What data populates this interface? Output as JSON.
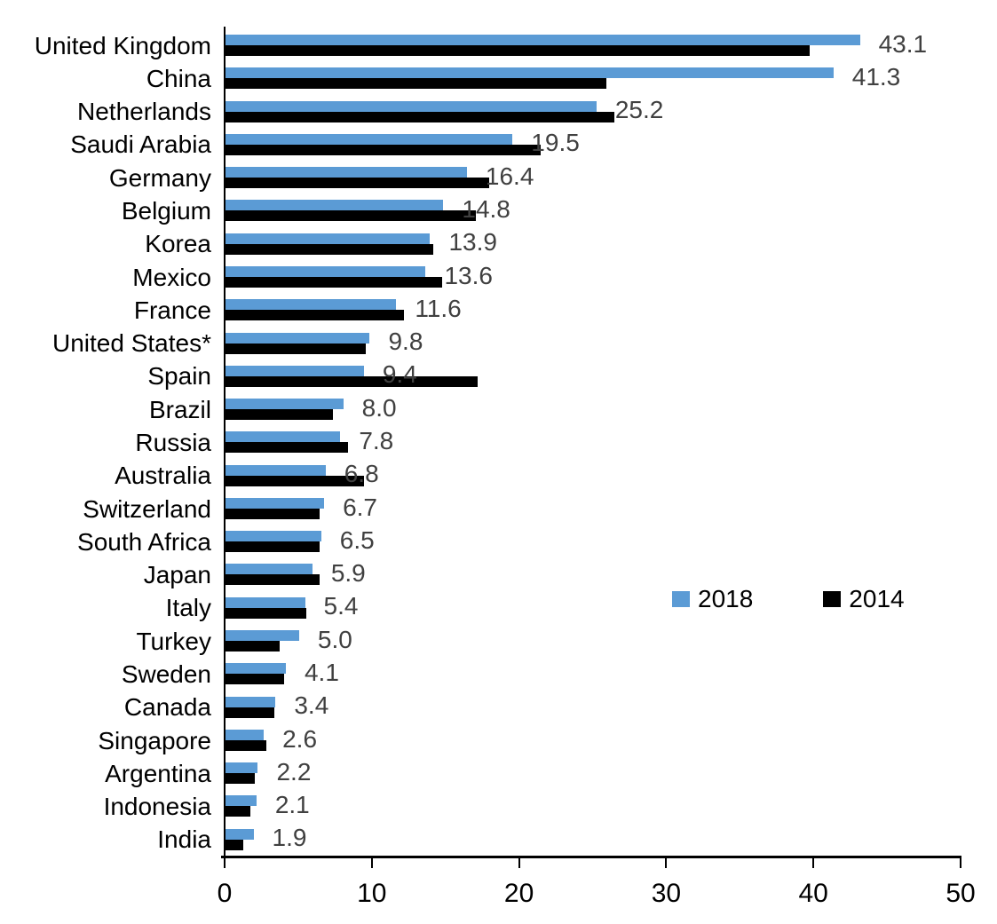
{
  "chart_data": {
    "type": "bar",
    "orientation": "horizontal",
    "title": "",
    "xlabel": "",
    "ylabel": "",
    "xlim": [
      0,
      50
    ],
    "x_ticks": [
      0,
      10,
      20,
      30,
      40,
      50
    ],
    "grid": false,
    "legend_position": "middle-right",
    "categories": [
      "United Kingdom",
      "China",
      "Netherlands",
      "Saudi Arabia",
      "Germany",
      "Belgium",
      "Korea",
      "Mexico",
      "France",
      "United States*",
      "Spain",
      "Brazil",
      "Russia",
      "Australia",
      "Switzerland",
      "South Africa",
      "Japan",
      "Italy",
      "Turkey",
      "Sweden",
      "Canada",
      "Singapore",
      "Argentina",
      "Indonesia",
      "India"
    ],
    "series": [
      {
        "name": "2018",
        "color": "#5B9BD5",
        "values": [
          43.1,
          41.3,
          25.2,
          19.5,
          16.4,
          14.8,
          13.9,
          13.6,
          11.6,
          9.8,
          9.4,
          8.0,
          7.8,
          6.8,
          6.7,
          6.5,
          5.9,
          5.4,
          5.0,
          4.1,
          3.4,
          2.6,
          2.2,
          2.1,
          1.9
        ]
      },
      {
        "name": "2014",
        "color": "#000000",
        "values": [
          39.7,
          25.9,
          26.4,
          21.4,
          17.9,
          17.0,
          14.1,
          14.7,
          12.1,
          9.5,
          17.1,
          7.3,
          8.3,
          9.4,
          6.4,
          6.4,
          6.4,
          5.5,
          3.7,
          4.0,
          3.3,
          2.8,
          2.0,
          1.7,
          1.2
        ]
      }
    ],
    "value_labels": [
      "43.1",
      "41.3",
      "25.2",
      "19.5",
      "16.4",
      "14.8",
      "13.9",
      "13.6",
      "11.6",
      "9.8",
      "9.4",
      "8.0",
      "7.8",
      "6.8",
      "6.7",
      "6.5",
      "5.9",
      "5.4",
      "5.0",
      "4.1",
      "3.4",
      "2.6",
      "2.2",
      "2.1",
      "1.9"
    ],
    "value_label_series": "2018"
  },
  "legend": {
    "items": [
      {
        "label": "2018",
        "color": "#5B9BD5"
      },
      {
        "label": "2014",
        "color": "#000000"
      }
    ]
  },
  "colors": {
    "background": "#ffffff",
    "axis": "#000000",
    "category_label": "#000000",
    "tick_label": "#000000",
    "value_label": "#404040",
    "series_2018": "#5B9BD5",
    "series_2014": "#000000"
  }
}
